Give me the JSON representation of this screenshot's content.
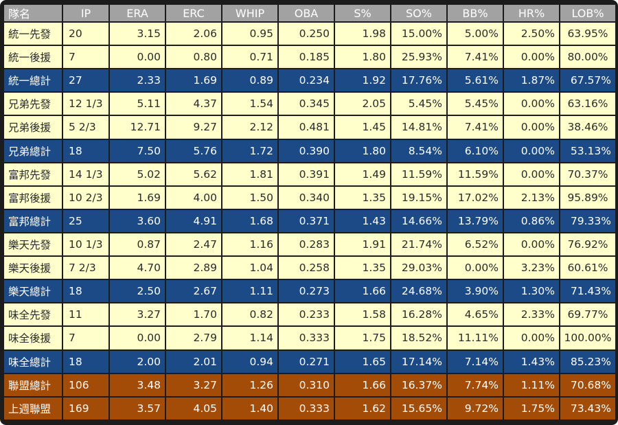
{
  "headers": [
    "隊名",
    "IP",
    "ERA",
    "ERC",
    "WHIP",
    "OBA",
    "S%",
    "SO%",
    "BB%",
    "HR%",
    "LOB%"
  ],
  "rows": [
    {
      "kind": "starter",
      "cells": [
        "統一先發",
        "20",
        "3.15",
        "2.06",
        "0.95",
        "0.250",
        "1.98",
        "15.00%",
        "5.00%",
        "2.50%",
        "63.95%"
      ]
    },
    {
      "kind": "reliever",
      "cells": [
        "統一後援",
        "7",
        "0.00",
        "0.80",
        "0.71",
        "0.185",
        "1.80",
        "25.93%",
        "7.41%",
        "0.00%",
        "80.00%"
      ]
    },
    {
      "kind": "total",
      "cells": [
        "統一總計",
        "27",
        "2.33",
        "1.69",
        "0.89",
        "0.234",
        "1.92",
        "17.76%",
        "5.61%",
        "1.87%",
        "67.57%"
      ]
    },
    {
      "kind": "starter",
      "cells": [
        "兄弟先發",
        "12 1/3",
        "5.11",
        "4.37",
        "1.54",
        "0.345",
        "2.05",
        "5.45%",
        "5.45%",
        "0.00%",
        "63.16%"
      ]
    },
    {
      "kind": "reliever",
      "cells": [
        "兄弟後援",
        "5 2/3",
        "12.71",
        "9.27",
        "2.12",
        "0.481",
        "1.45",
        "14.81%",
        "7.41%",
        "0.00%",
        "38.46%"
      ]
    },
    {
      "kind": "total",
      "cells": [
        "兄弟總計",
        "18",
        "7.50",
        "5.76",
        "1.72",
        "0.390",
        "1.80",
        "8.54%",
        "6.10%",
        "0.00%",
        "53.13%"
      ]
    },
    {
      "kind": "starter",
      "cells": [
        "富邦先發",
        "14 1/3",
        "5.02",
        "5.62",
        "1.81",
        "0.391",
        "1.49",
        "11.59%",
        "11.59%",
        "0.00%",
        "70.37%"
      ]
    },
    {
      "kind": "reliever",
      "cells": [
        "富邦後援",
        "10 2/3",
        "1.69",
        "4.00",
        "1.50",
        "0.340",
        "1.35",
        "19.15%",
        "17.02%",
        "2.13%",
        "95.89%"
      ]
    },
    {
      "kind": "total",
      "cells": [
        "富邦總計",
        "25",
        "3.60",
        "4.91",
        "1.68",
        "0.371",
        "1.43",
        "14.66%",
        "13.79%",
        "0.86%",
        "79.33%"
      ]
    },
    {
      "kind": "starter",
      "cells": [
        "樂天先發",
        "10 1/3",
        "0.87",
        "2.47",
        "1.16",
        "0.283",
        "1.91",
        "21.74%",
        "6.52%",
        "0.00%",
        "76.92%"
      ]
    },
    {
      "kind": "reliever",
      "cells": [
        "樂天後援",
        "7 2/3",
        "4.70",
        "2.89",
        "1.04",
        "0.258",
        "1.35",
        "29.03%",
        "0.00%",
        "3.23%",
        "60.61%"
      ]
    },
    {
      "kind": "total",
      "cells": [
        "樂天總計",
        "18",
        "2.50",
        "2.67",
        "1.11",
        "0.273",
        "1.66",
        "24.68%",
        "3.90%",
        "1.30%",
        "71.43%"
      ]
    },
    {
      "kind": "starter",
      "cells": [
        "味全先發",
        "11",
        "3.27",
        "1.70",
        "0.82",
        "0.233",
        "1.58",
        "16.28%",
        "4.65%",
        "2.33%",
        "69.77%"
      ]
    },
    {
      "kind": "reliever",
      "cells": [
        "味全後援",
        "7",
        "0.00",
        "2.79",
        "1.14",
        "0.333",
        "1.75",
        "18.52%",
        "11.11%",
        "0.00%",
        "100.00%"
      ]
    },
    {
      "kind": "total",
      "cells": [
        "味全總計",
        "18",
        "2.00",
        "2.01",
        "0.94",
        "0.271",
        "1.65",
        "17.14%",
        "7.14%",
        "1.43%",
        "85.23%"
      ]
    },
    {
      "kind": "league",
      "cells": [
        "聯盟總計",
        "106",
        "3.48",
        "3.27",
        "1.26",
        "0.310",
        "1.66",
        "16.37%",
        "7.74%",
        "1.11%",
        "70.68%"
      ]
    },
    {
      "kind": "league",
      "cells": [
        "上週聯盟",
        "169",
        "3.57",
        "4.05",
        "1.40",
        "0.333",
        "1.62",
        "15.65%",
        "9.72%",
        "1.75%",
        "73.43%"
      ]
    }
  ]
}
